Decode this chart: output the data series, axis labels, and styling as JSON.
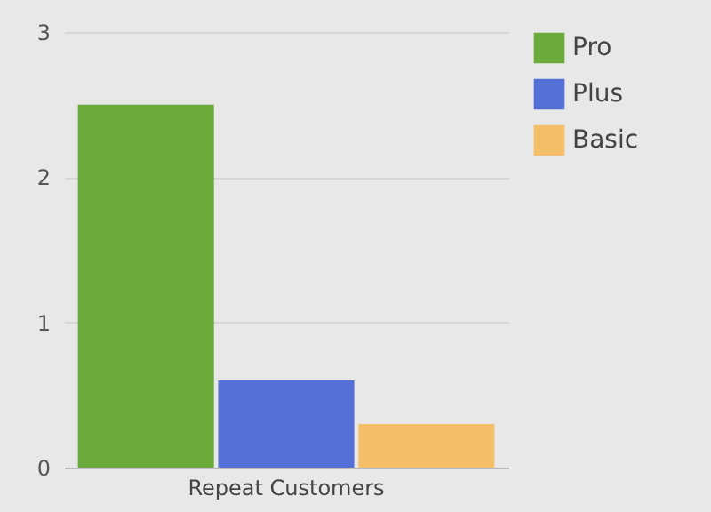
{
  "chart_data": {
    "type": "bar",
    "categories": [
      "Repeat Customers"
    ],
    "series": [
      {
        "name": "Pro",
        "color": "#6aaa3a",
        "values": [
          2.5
        ]
      },
      {
        "name": "Plus",
        "color": "#5470d6",
        "values": [
          0.6
        ]
      },
      {
        "name": "Basic",
        "color": "#f5bf6a",
        "values": [
          0.3
        ]
      }
    ],
    "ylim": [
      0,
      3
    ],
    "yticks": [
      0,
      1,
      2,
      3
    ],
    "grid": "y",
    "legend": "right"
  }
}
